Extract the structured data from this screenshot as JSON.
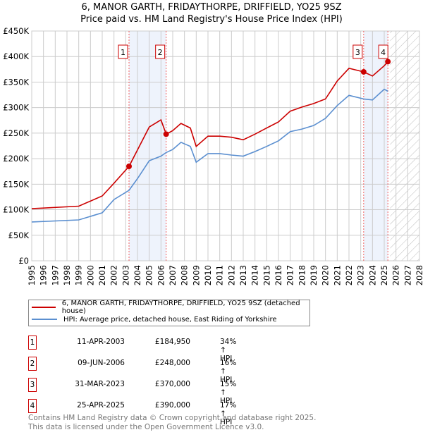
{
  "title_line1": "6, MANOR GARTH, FRIDAYTHORPE, DRIFFIELD, YO25 9SZ",
  "title_line2": "Price paid vs. HM Land Registry's House Price Index (HPI)",
  "chart_data": {
    "type": "line",
    "title": "6, MANOR GARTH, FRIDAYTHORPE, DRIFFIELD, YO25 9SZ — Price paid vs. HM Land Registry's House Price Index (HPI)",
    "xlim": [
      1995,
      2028
    ],
    "ylim": [
      0,
      450000
    ],
    "x_ticks": [
      1995,
      1996,
      1997,
      1998,
      1999,
      2000,
      2001,
      2002,
      2003,
      2004,
      2005,
      2006,
      2007,
      2008,
      2009,
      2010,
      2011,
      2012,
      2013,
      2014,
      2015,
      2016,
      2017,
      2018,
      2019,
      2020,
      2021,
      2022,
      2023,
      2024,
      2025,
      2026,
      2027,
      2028
    ],
    "y_ticks": [
      0,
      50000,
      100000,
      150000,
      200000,
      250000,
      300000,
      350000,
      400000,
      450000
    ],
    "y_tick_labels": [
      "£0",
      "£50K",
      "£100K",
      "£150K",
      "£200K",
      "£250K",
      "£300K",
      "£350K",
      "£400K",
      "£450K"
    ],
    "grid": true,
    "forecast_hatch_from": 2025.5,
    "series": [
      {
        "name": "6, MANOR GARTH, FRIDAYTHORPE, DRIFFIELD, YO25 9SZ (detached house)",
        "color": "#cc0000",
        "x": [
          1995,
          1999,
          2001,
          2002,
          2003.28,
          2004,
          2005,
          2006,
          2006.44,
          2007,
          2007.7,
          2008.5,
          2009,
          2010,
          2011,
          2012,
          2013,
          2014,
          2015,
          2016,
          2017,
          2018,
          2019,
          2020,
          2021,
          2022,
          2023.25,
          2024,
          2025,
          2025.31
        ],
        "values": [
          102000,
          107000,
          127000,
          152000,
          184950,
          217000,
          262000,
          276000,
          248000,
          255000,
          269000,
          260000,
          224000,
          244000,
          244000,
          242000,
          237000,
          248000,
          260000,
          272000,
          293000,
          301000,
          308000,
          317000,
          352000,
          377000,
          370000,
          362000,
          382000,
          390000
        ]
      },
      {
        "name": "HPI: Average price, detached house, East Riding of Yorkshire",
        "color": "#5b8fd0",
        "x": [
          1995,
          1999,
          2001,
          2002,
          2003.28,
          2004,
          2005,
          2006,
          2006.44,
          2007,
          2007.7,
          2008.5,
          2009,
          2010,
          2011,
          2012,
          2013,
          2014,
          2015,
          2016,
          2017,
          2018,
          2019,
          2020,
          2021,
          2022,
          2023.25,
          2024,
          2025,
          2025.31
        ],
        "values": [
          76000,
          80000,
          94000,
          120000,
          138000,
          161000,
          196000,
          205000,
          212000,
          218000,
          232000,
          224000,
          193000,
          210000,
          210000,
          207000,
          205000,
          214000,
          224000,
          235000,
          253000,
          258000,
          265000,
          279000,
          304000,
          324000,
          317000,
          315000,
          336000,
          332000
        ]
      }
    ],
    "sales": [
      {
        "label": "1",
        "x": 2003.28,
        "value": 184950
      },
      {
        "label": "2",
        "x": 2006.44,
        "value": 248000
      },
      {
        "label": "3",
        "x": 2023.25,
        "value": 370000
      },
      {
        "label": "4",
        "x": 2025.31,
        "value": 390000
      }
    ],
    "shaded_ranges": [
      [
        2003.28,
        2006.44
      ],
      [
        2023.25,
        2025.31
      ]
    ],
    "legend_position": "below"
  },
  "legend": {
    "red": "6, MANOR GARTH, FRIDAYTHORPE, DRIFFIELD, YO25 9SZ (detached house)",
    "blue": "HPI: Average price, detached house, East Riding of Yorkshire"
  },
  "transactions": [
    {
      "num": "1",
      "date": "11-APR-2003",
      "price": "£184,950",
      "hpi": "34% ↑ HPI"
    },
    {
      "num": "2",
      "date": "09-JUN-2006",
      "price": "£248,000",
      "hpi": "16% ↑ HPI"
    },
    {
      "num": "3",
      "date": "31-MAR-2023",
      "price": "£370,000",
      "hpi": "15% ↑ HPI"
    },
    {
      "num": "4",
      "date": "25-APR-2025",
      "price": "£390,000",
      "hpi": "17% ↑ HPI"
    }
  ],
  "footer_line1": "Contains HM Land Registry data © Crown copyright and database right 2025.",
  "footer_line2": "This data is licensed under the Open Government Licence v3.0."
}
